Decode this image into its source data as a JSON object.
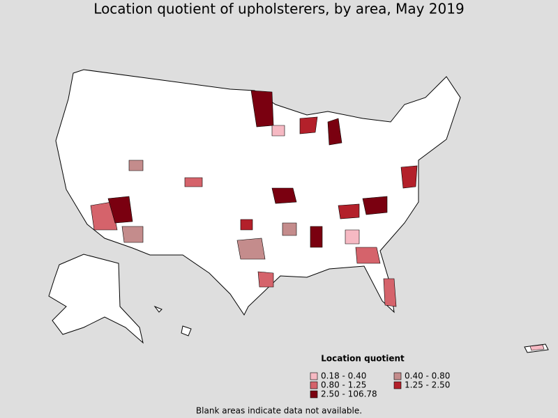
{
  "title": "Location quotient of upholsterers, by area, May 2019",
  "legend": {
    "title": "Location quotient",
    "items": [
      {
        "label": "0.18 - 0.40",
        "color": "#f6b9c3"
      },
      {
        "label": "0.40 - 0.80",
        "color": "#c48c8c"
      },
      {
        "label": "0.80 - 1.25",
        "color": "#d5636b"
      },
      {
        "label": "1.25 - 2.50",
        "color": "#b3202a"
      },
      {
        "label": "2.50 - 106.78",
        "color": "#7a0010"
      }
    ]
  },
  "footnote": "Blank areas indicate data not available."
}
